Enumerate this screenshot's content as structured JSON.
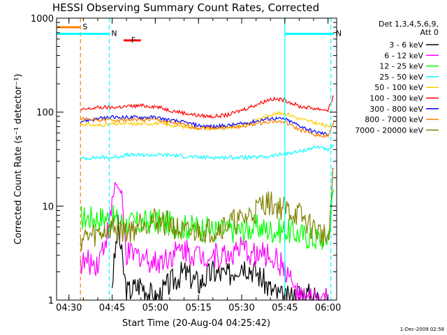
{
  "chart_data": {
    "type": "line",
    "title": "HESSI Observing Summary Count Rates, Corrected",
    "xlabel": "Start Time (20-Aug-04 04:25:42)",
    "ylabel": "Corrected Count Rate (s⁻¹ detector⁻¹)",
    "y_scale": "log",
    "ylim": [
      1,
      1000
    ],
    "xlim": [
      "04:25:42",
      "06:03"
    ],
    "x_ticks": [
      "04:30",
      "04:45",
      "05:00",
      "05:15",
      "05:30",
      "05:45",
      "06:00"
    ],
    "y_ticks": [
      "1",
      "10",
      "100",
      "1000"
    ],
    "legend_header": [
      "Det 1,3,4,5,6,9,",
      "Att 0"
    ],
    "legend_placement": "right",
    "timestamp": "1-Dec-2009 02:58",
    "series": [
      {
        "name": "3 - 6 keV",
        "color": "#000000",
        "x": [
          "04:45",
          "04:47",
          "04:50",
          "04:55",
          "05:00",
          "05:05",
          "05:10",
          "05:15",
          "05:20",
          "05:25",
          "05:30",
          "05:35",
          "05:40",
          "05:45",
          "05:50",
          "05:55",
          "06:00"
        ],
        "y": [
          1.5,
          6,
          1.2,
          1.5,
          1,
          1.5,
          2,
          1.5,
          2,
          1.8,
          2.5,
          2,
          1.3,
          1,
          1.2,
          1.1,
          1
        ]
      },
      {
        "name": "6 - 12 keV",
        "color": "#ff00ff",
        "x": [
          "04:34",
          "04:40",
          "04:44",
          "04:46",
          "04:48",
          "04:50",
          "04:55",
          "05:00",
          "05:05",
          "05:10",
          "05:15",
          "05:20",
          "05:25",
          "05:30",
          "05:35",
          "05:40",
          "05:45",
          "05:50",
          "05:55",
          "06:00"
        ],
        "y": [
          2.5,
          2.5,
          6,
          18,
          14,
          3,
          3,
          2.5,
          3,
          3.5,
          3,
          3,
          3,
          3.5,
          3,
          3,
          2.2,
          1,
          1,
          1
        ]
      },
      {
        "name": "12 - 25 keV",
        "color": "#00ff00",
        "x": [
          "04:34",
          "04:40",
          "04:45",
          "04:50",
          "04:55",
          "05:00",
          "05:05",
          "05:10",
          "05:15",
          "05:20",
          "05:25",
          "05:30",
          "05:35",
          "05:40",
          "05:45",
          "05:50",
          "05:55",
          "06:00",
          "06:02"
        ],
        "y": [
          7.5,
          7.5,
          7.5,
          6.5,
          6.5,
          7,
          6.5,
          6,
          6,
          5.5,
          5.5,
          5.5,
          6,
          5.5,
          5.5,
          5,
          4.5,
          4.5,
          15
        ]
      },
      {
        "name": "25 - 50 keV",
        "color": "#00ffff",
        "x": [
          "04:34",
          "04:40",
          "04:45",
          "04:50",
          "04:55",
          "05:00",
          "05:05",
          "05:10",
          "05:15",
          "05:20",
          "05:25",
          "05:30",
          "05:35",
          "05:40",
          "05:45",
          "05:50",
          "05:55",
          "05:58",
          "06:00",
          "06:02"
        ],
        "y": [
          32,
          33,
          33,
          35,
          35,
          35,
          35,
          34,
          33,
          33,
          33,
          33,
          33,
          34,
          36,
          38,
          42,
          43,
          38,
          45
        ]
      },
      {
        "name": "50 - 100 keV",
        "color": "#ffcc00",
        "x": [
          "04:34",
          "04:40",
          "04:45",
          "04:50",
          "04:55",
          "05:00",
          "05:05",
          "05:10",
          "05:15",
          "05:20",
          "05:25",
          "05:30",
          "05:35",
          "05:40",
          "05:45",
          "05:50",
          "05:55",
          "06:00",
          "06:02"
        ],
        "y": [
          75,
          72,
          75,
          75,
          75,
          76,
          73,
          70,
          68,
          67,
          68,
          72,
          82,
          95,
          98,
          85,
          78,
          70,
          75
        ]
      },
      {
        "name": "100 - 300 keV",
        "color": "#ff0000",
        "x": [
          "04:34",
          "04:40",
          "04:45",
          "04:50",
          "04:55",
          "05:00",
          "05:05",
          "05:10",
          "05:15",
          "05:20",
          "05:25",
          "05:30",
          "05:35",
          "05:40",
          "05:45",
          "05:50",
          "05:55",
          "06:00",
          "06:02"
        ],
        "y": [
          105,
          112,
          112,
          115,
          117,
          115,
          105,
          98,
          92,
          90,
          93,
          105,
          120,
          138,
          135,
          115,
          110,
          105,
          150
        ]
      },
      {
        "name": "300 - 800 keV",
        "color": "#0000ff",
        "x": [
          "04:34",
          "04:40",
          "04:45",
          "04:50",
          "04:55",
          "05:00",
          "05:05",
          "05:10",
          "05:15",
          "05:20",
          "05:25",
          "05:30",
          "05:35",
          "05:40",
          "05:45",
          "05:50",
          "05:55",
          "06:00"
        ],
        "y": [
          80,
          85,
          88,
          88,
          88,
          88,
          82,
          78,
          72,
          70,
          72,
          75,
          80,
          86,
          84,
          72,
          62,
          58
        ]
      },
      {
        "name": "800 - 7000 keV",
        "color": "#ff8000",
        "x": [
          "04:34",
          "04:40",
          "04:45",
          "04:50",
          "04:55",
          "05:00",
          "05:05",
          "05:10",
          "05:15",
          "05:20",
          "05:25",
          "05:30",
          "05:35",
          "05:40",
          "05:45",
          "05:50",
          "05:55",
          "06:00",
          "06:02"
        ],
        "y": [
          85,
          82,
          83,
          83,
          83,
          83,
          78,
          73,
          68,
          68,
          68,
          70,
          75,
          80,
          78,
          65,
          58,
          55,
          80
        ]
      },
      {
        "name": "7000 - 20000 keV",
        "color": "#808000",
        "x": [
          "04:34",
          "04:40",
          "04:45",
          "04:48",
          "04:52",
          "04:55",
          "05:00",
          "05:05",
          "05:10",
          "05:15",
          "05:20",
          "05:25",
          "05:30",
          "05:35",
          "05:38",
          "05:42",
          "05:46",
          "05:50",
          "05:54",
          "05:58",
          "06:00",
          "06:02"
        ],
        "y": [
          4.5,
          5,
          6,
          5.5,
          5.5,
          7,
          7,
          6.5,
          5,
          5.5,
          5.5,
          6.5,
          7,
          9,
          11,
          10,
          9,
          8,
          6,
          5,
          4.5,
          25
        ]
      }
    ],
    "markers": [
      {
        "label": "S",
        "color": "#ff8000",
        "time": "04:34",
        "style": "dashed"
      },
      {
        "label": "N",
        "color": "#00ffff",
        "time": "04:44",
        "style": "dashed"
      },
      {
        "label": "N",
        "color": "#00ffff",
        "time": "05:45",
        "style": "solid"
      },
      {
        "label": "",
        "color": "#00ffff",
        "time": "06:01",
        "style": "dashed"
      }
    ],
    "bars": [
      {
        "label": "S",
        "color": "#ff8000",
        "start": "04:26",
        "end": "04:34",
        "level": 800
      },
      {
        "label": "N",
        "color": "#00ffff",
        "start": "04:25:42",
        "end": "04:44",
        "level": 680
      },
      {
        "label": "N",
        "color": "#00ffff",
        "start": "05:45",
        "end": "06:02",
        "level": 680
      },
      {
        "label": "F",
        "color": "#ff0000",
        "start": "04:49",
        "end": "04:55",
        "level": 580
      }
    ]
  }
}
